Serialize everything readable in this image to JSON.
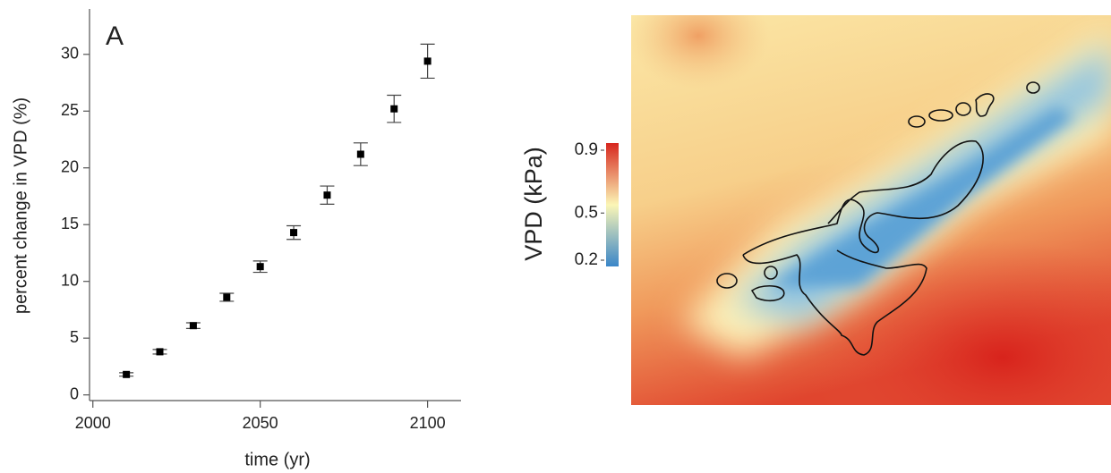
{
  "chart_data": [
    {
      "type": "errorbar",
      "panel_label": "A",
      "x_label": "time (yr)",
      "y_label": "percent change in VPD (%)",
      "x": [
        2010,
        2020,
        2030,
        2040,
        2050,
        2060,
        2070,
        2080,
        2090,
        2100
      ],
      "series": [
        {
          "color": "#000000",
          "values": [
            1.8,
            3.8,
            6.1,
            8.6,
            11.3,
            14.3,
            17.6,
            21.2,
            25.2,
            29.4
          ],
          "errors": [
            0.15,
            0.2,
            0.25,
            0.35,
            0.5,
            0.6,
            0.8,
            1.0,
            1.2,
            1.5
          ]
        }
      ],
      "xlim": [
        1999,
        2110
      ],
      "xticks": [
        2000,
        2050,
        2100
      ],
      "ylim": [
        -0.5,
        34
      ],
      "yticks": [
        0,
        5,
        10,
        15,
        20,
        25,
        30
      ]
    },
    {
      "type": "colorbar",
      "label": "VPD (kPa)",
      "colors": [
        "#3a86c8",
        "#fbf6b6",
        "#d7261e"
      ],
      "ylim": [
        0.2,
        0.9
      ],
      "yticks": [
        0.2,
        0.5,
        0.9
      ]
    }
  ]
}
